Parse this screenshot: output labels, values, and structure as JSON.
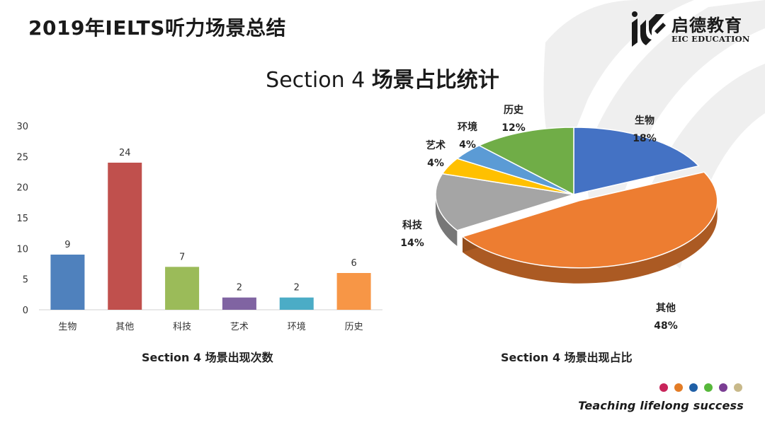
{
  "header": {
    "title": "2019年IELTS听力场景总结",
    "logo_cn": "启德教育",
    "logo_en": "EIC EDUCATION"
  },
  "slide": {
    "heading_prefix": "Section 4",
    "heading_suffix": "场景占比统计"
  },
  "footer": {
    "tagline": "Teaching lifelong success",
    "dot_colors": [
      "#c8245a",
      "#e37c26",
      "#1f5fa6",
      "#57b83b",
      "#7a3d93",
      "#c8b98a"
    ]
  },
  "chart_data": [
    {
      "type": "bar",
      "title": "Section 4 场景出现次数",
      "categories": [
        "生物",
        "其他",
        "科技",
        "艺术",
        "环境",
        "历史"
      ],
      "values": [
        9,
        24,
        7,
        2,
        2,
        6
      ],
      "colors": [
        "#4f81bd",
        "#c0504d",
        "#9bbb59",
        "#8064a2",
        "#4bacc6",
        "#f79646"
      ],
      "ylim": [
        0,
        30
      ],
      "yticks": [
        0,
        5,
        10,
        15,
        20,
        25,
        30
      ],
      "data_labels": true,
      "grid": false
    },
    {
      "type": "pie",
      "title": "Section 4 场景出现占比",
      "style": "3d",
      "labels": [
        "生物",
        "其他",
        "科技",
        "艺术",
        "环境",
        "历史"
      ],
      "values": [
        18,
        48,
        14,
        4,
        4,
        12
      ],
      "value_labels": [
        "18%",
        "48%",
        "14%",
        "4%",
        "4%",
        "12%"
      ],
      "colors": [
        "#4472c4",
        "#ed7d31",
        "#a5a5a5",
        "#ffc000",
        "#5b9bd5",
        "#70ad47"
      ],
      "exploded": "其他",
      "label_lines": [
        "生物\n18%",
        "其他\n48%",
        "科技\n14%",
        "艺术\n4%",
        "环境\n4%",
        "历史\n12%"
      ]
    }
  ]
}
